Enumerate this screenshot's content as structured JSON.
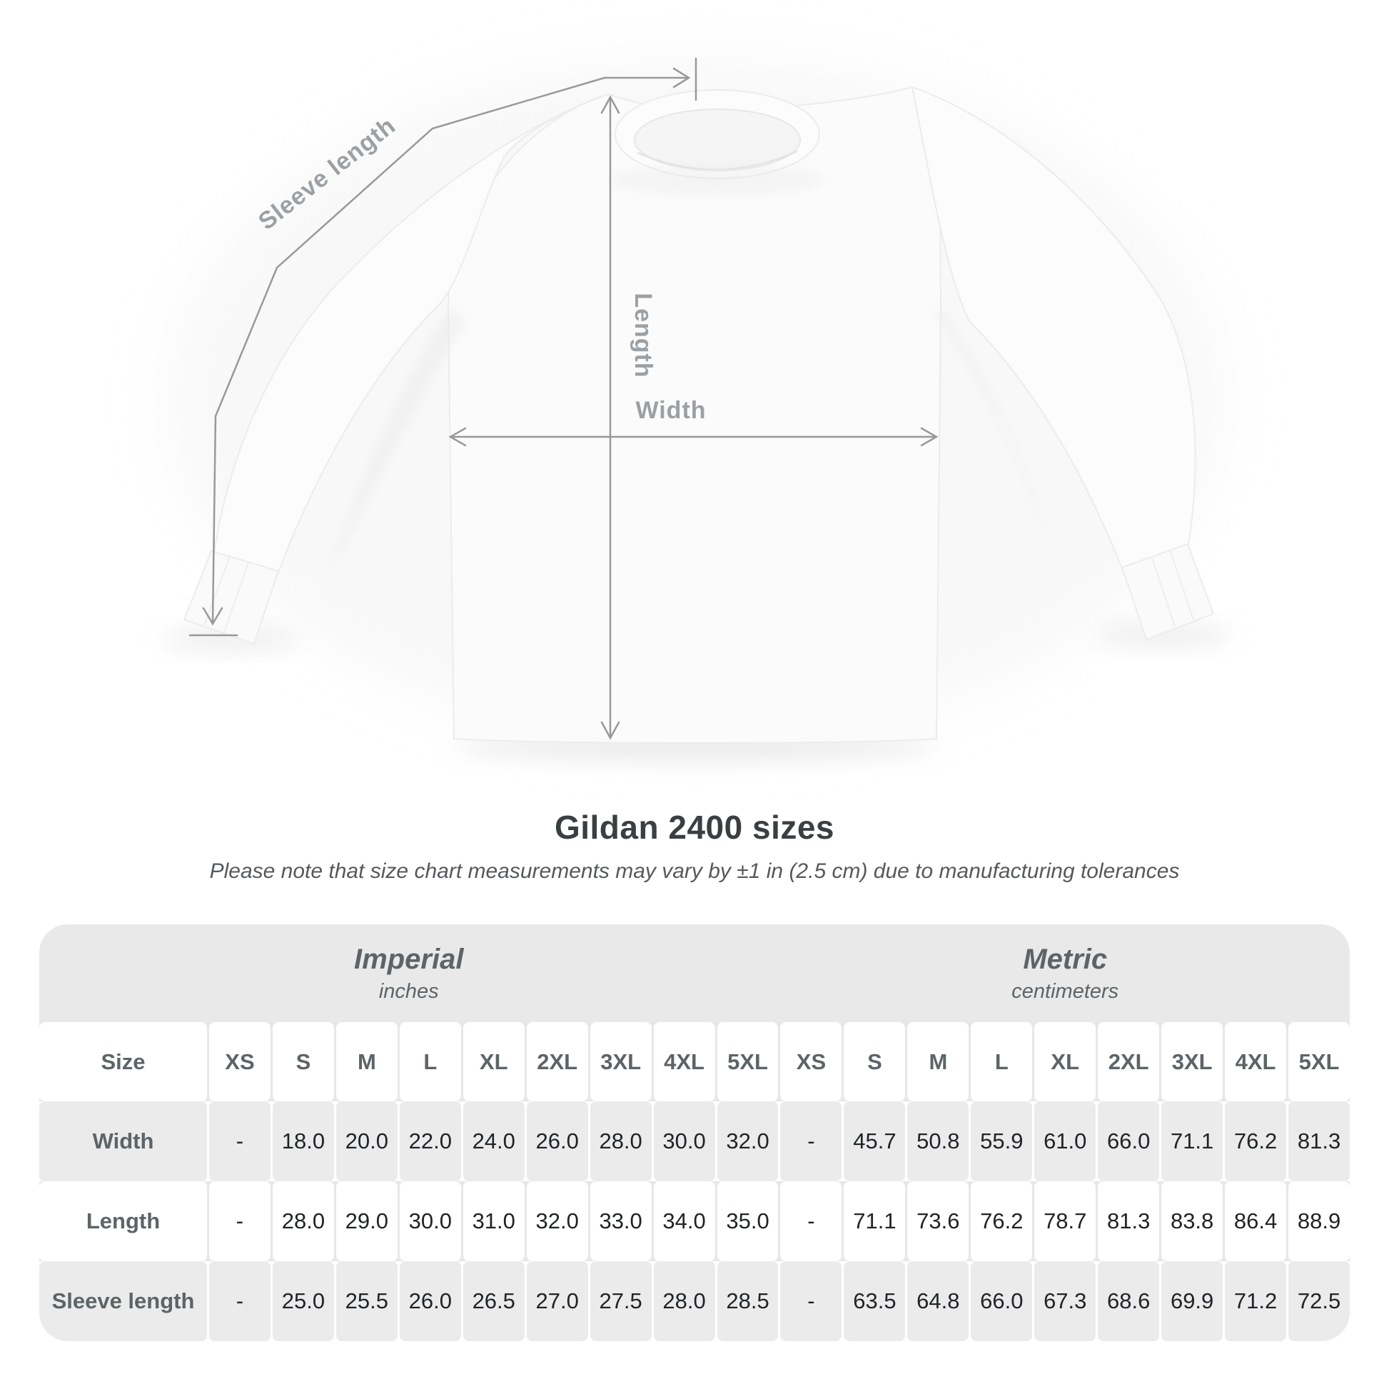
{
  "diagram": {
    "sleeve_length_label": "Sleeve length",
    "length_label": "Length",
    "width_label": "Width"
  },
  "heading": {
    "title": "Gildan 2400 sizes",
    "subtitle": "Please note that size chart measurements may vary by ±1 in (2.5 cm) due to manufacturing tolerances"
  },
  "chart_data": {
    "type": "table",
    "title": "Gildan 2400 sizes",
    "sections": [
      {
        "label": "Imperial",
        "unit": "inches"
      },
      {
        "label": "Metric",
        "unit": "centimeters"
      }
    ],
    "size_header": "Size",
    "columns": [
      "XS",
      "S",
      "M",
      "L",
      "XL",
      "2XL",
      "3XL",
      "4XL",
      "5XL",
      "XS",
      "S",
      "M",
      "L",
      "XL",
      "2XL",
      "3XL",
      "4XL",
      "5XL"
    ],
    "rows": [
      {
        "label": "Width",
        "values": [
          "-",
          "18.0",
          "20.0",
          "22.0",
          "24.0",
          "26.0",
          "28.0",
          "30.0",
          "32.0",
          "-",
          "45.7",
          "50.8",
          "55.9",
          "61.0",
          "66.0",
          "71.1",
          "76.2",
          "81.3"
        ]
      },
      {
        "label": "Length",
        "values": [
          "-",
          "28.0",
          "29.0",
          "30.0",
          "31.0",
          "32.0",
          "33.0",
          "34.0",
          "35.0",
          "-",
          "71.1",
          "73.6",
          "76.2",
          "78.7",
          "81.3",
          "83.8",
          "86.4",
          "88.9"
        ]
      },
      {
        "label": "Sleeve length",
        "values": [
          "-",
          "25.0",
          "25.5",
          "26.0",
          "26.5",
          "27.0",
          "27.5",
          "28.0",
          "28.5",
          "-",
          "63.5",
          "64.8",
          "66.0",
          "67.3",
          "68.6",
          "69.9",
          "71.2",
          "72.5"
        ]
      }
    ]
  },
  "colors": {
    "measure_line": "#97999c",
    "measure_label": "#9ba0a4",
    "title_text": "#3a3f42",
    "subtitle_text": "#55595d",
    "table_band": "#e9e9e9",
    "table_stripe": "#ebebeb",
    "header_text": "#5d6468",
    "value_text": "#202427"
  }
}
